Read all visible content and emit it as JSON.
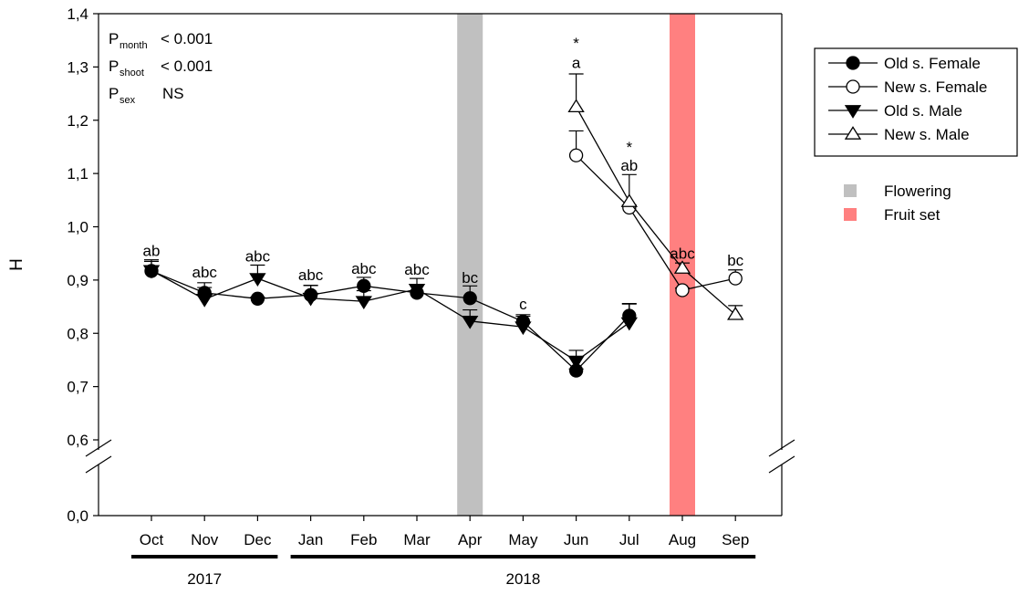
{
  "chart_data": {
    "type": "line",
    "ylabel": "H",
    "xlabel": "",
    "categories": [
      "Oct",
      "Nov",
      "Dec",
      "Jan",
      "Feb",
      "Mar",
      "Apr",
      "May",
      "Jun",
      "Jul",
      "Aug",
      "Sep"
    ],
    "years": [
      {
        "label": "2017",
        "from": "Oct",
        "to": "Dec"
      },
      {
        "label": "2018",
        "from": "Jan",
        "to": "Sep"
      }
    ],
    "y_axis": {
      "break_between": [
        0.0,
        0.6
      ],
      "range_lower": [
        0.0,
        0.0
      ],
      "range_upper": [
        0.6,
        1.4
      ],
      "ticks": [
        0.0,
        0.6,
        0.7,
        0.8,
        0.9,
        1.0,
        1.1,
        1.2,
        1.3,
        1.4
      ],
      "tick_labels": [
        "0,0",
        "0,6",
        "0,7",
        "0,8",
        "0,9",
        "1,0",
        "1,1",
        "1,2",
        "1,3",
        "1,4"
      ]
    },
    "grid": false,
    "legend_position": "right",
    "series": [
      {
        "name": "Old s. Female",
        "marker": "circle",
        "filled": true,
        "x": [
          "Oct",
          "Nov",
          "Dec",
          "Jan",
          "Feb",
          "Mar",
          "Apr",
          "May",
          "Jun",
          "Jul"
        ],
        "values": [
          0.917,
          0.876,
          0.865,
          0.872,
          0.889,
          0.876,
          0.866,
          0.822,
          0.73,
          0.833
        ],
        "errors": [
          0.018,
          0.01,
          0.003,
          0.018,
          0.016,
          0.015,
          0.023,
          0.013,
          0.003,
          0.022
        ]
      },
      {
        "name": "New s. Female",
        "marker": "circle",
        "filled": false,
        "x": [
          "Jun",
          "Jul",
          "Aug",
          "Sep"
        ],
        "values": [
          1.134,
          1.036,
          0.881,
          0.903
        ],
        "errors": [
          0.046,
          0.005,
          0.004,
          0.016
        ]
      },
      {
        "name": "Old s. Male",
        "marker": "triangle-down",
        "filled": true,
        "x": [
          "Oct",
          "Nov",
          "Dec",
          "Jan",
          "Feb",
          "Mar",
          "Apr",
          "May",
          "Jun",
          "Jul"
        ],
        "values": [
          0.918,
          0.864,
          0.903,
          0.866,
          0.86,
          0.883,
          0.823,
          0.812,
          0.748,
          0.82
        ],
        "errors": [
          0.02,
          0.031,
          0.025,
          0.024,
          0.02,
          0.02,
          0.021,
          0.02,
          0.02,
          0.036
        ]
      },
      {
        "name": "New s. Male",
        "marker": "triangle-up",
        "filled": false,
        "x": [
          "Jun",
          "Jul",
          "Aug",
          "Sep"
        ],
        "values": [
          1.225,
          1.047,
          0.922,
          0.835
        ],
        "errors": [
          0.062,
          0.051,
          0.01,
          0.017
        ]
      }
    ],
    "shaded_periods": [
      {
        "name": "Flowering",
        "month": "Apr",
        "color": "#c0c0c0"
      },
      {
        "name": "Fruit set",
        "month": "Aug",
        "color": "#ff8080"
      }
    ],
    "letters": [
      {
        "month": "Oct",
        "text": "ab",
        "y": 0.945
      },
      {
        "month": "Nov",
        "text": "abc",
        "y": 0.905
      },
      {
        "month": "Dec",
        "text": "abc",
        "y": 0.935
      },
      {
        "month": "Jan",
        "text": "abc",
        "y": 0.9
      },
      {
        "month": "Feb",
        "text": "abc",
        "y": 0.912
      },
      {
        "month": "Mar",
        "text": "abc",
        "y": 0.91
      },
      {
        "month": "Apr",
        "text": "bc",
        "y": 0.895
      },
      {
        "month": "May",
        "text": "c",
        "y": 0.845
      },
      {
        "month": "Jun",
        "text": "a",
        "y": 1.298
      },
      {
        "month": "Jul",
        "text": "ab",
        "y": 1.105
      },
      {
        "month": "Aug",
        "text": "abc",
        "y": 0.94
      },
      {
        "month": "Sep",
        "text": "bc",
        "y": 0.927
      }
    ],
    "asterisks": [
      {
        "month": "Jun",
        "text": "*",
        "y": 1.335
      },
      {
        "month": "Jul",
        "text": "*",
        "y": 1.14
      }
    ],
    "stats": [
      {
        "p": "P",
        "sub": "month",
        "value": "< 0.001"
      },
      {
        "p": "P",
        "sub": "shoot",
        "value": "< 0.001"
      },
      {
        "p": "P",
        "sub": "sex",
        "value": "NS"
      }
    ]
  }
}
